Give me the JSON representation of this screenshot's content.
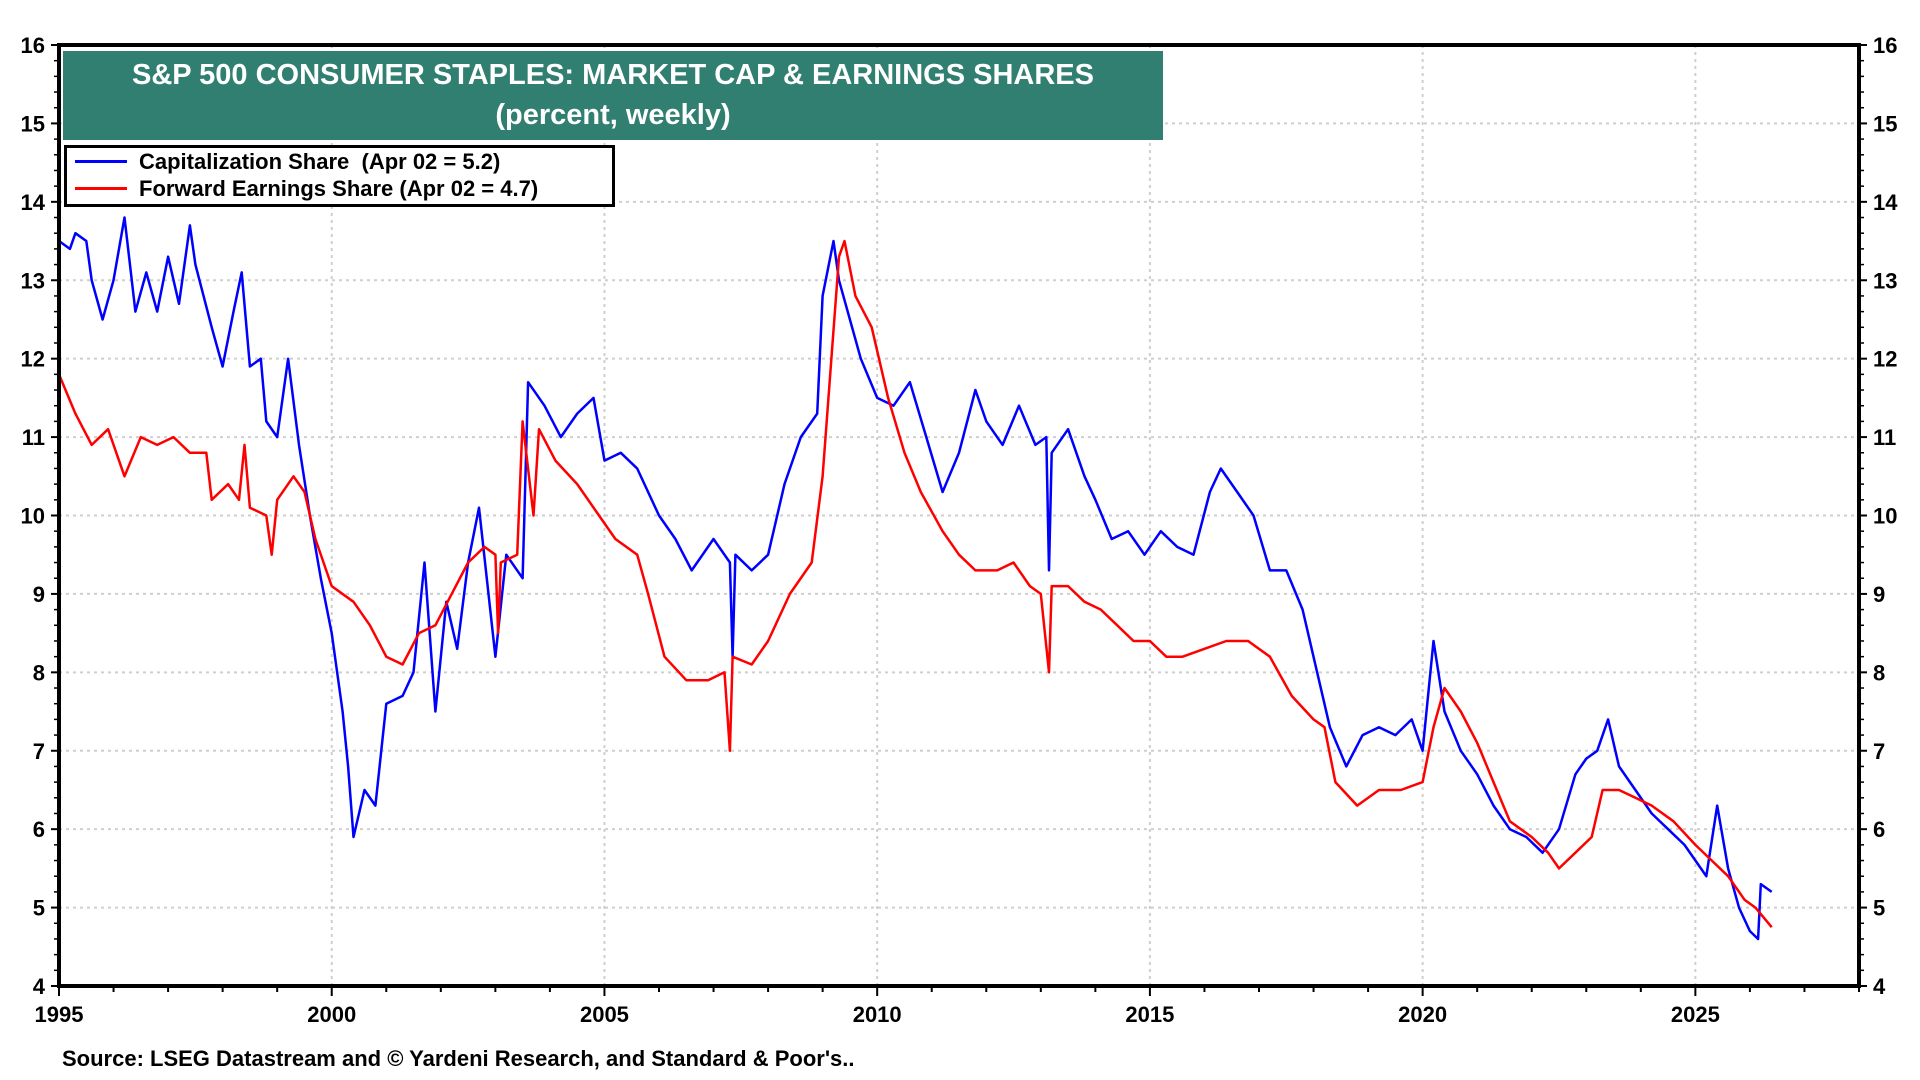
{
  "chart_data": {
    "type": "line",
    "title": "S&P 500 CONSUMER STAPLES: MARKET CAP & EARNINGS SHARES",
    "subtitle": "(percent, weekly)",
    "xlim": [
      1995,
      2028
    ],
    "ylim": [
      4,
      16
    ],
    "x_ticks": [
      "1995",
      "2000",
      "2005",
      "2010",
      "2015",
      "2020",
      "2025"
    ],
    "y_ticks": [
      "4",
      "5",
      "6",
      "7",
      "8",
      "9",
      "10",
      "11",
      "12",
      "13",
      "14",
      "15",
      "16"
    ],
    "grid": true,
    "legend_placement": "top-left",
    "series": [
      {
        "name": "Capitalization Share  (Apr 02 = 5.2)",
        "color": "#0000ff",
        "points": [
          [
            1995.0,
            13.5
          ],
          [
            1995.2,
            13.4
          ],
          [
            1995.3,
            13.6
          ],
          [
            1995.5,
            13.5
          ],
          [
            1995.6,
            13.0
          ],
          [
            1995.8,
            12.5
          ],
          [
            1996.0,
            13.0
          ],
          [
            1996.2,
            13.8
          ],
          [
            1996.4,
            12.6
          ],
          [
            1996.6,
            13.1
          ],
          [
            1996.8,
            12.6
          ],
          [
            1997.0,
            13.3
          ],
          [
            1997.2,
            12.7
          ],
          [
            1997.4,
            13.7
          ],
          [
            1997.5,
            13.2
          ],
          [
            1997.8,
            12.4
          ],
          [
            1998.0,
            11.9
          ],
          [
            1998.2,
            12.6
          ],
          [
            1998.35,
            13.1
          ],
          [
            1998.5,
            11.9
          ],
          [
            1998.7,
            12.0
          ],
          [
            1998.8,
            11.2
          ],
          [
            1999.0,
            11.0
          ],
          [
            1999.2,
            12.0
          ],
          [
            1999.4,
            10.9
          ],
          [
            1999.6,
            10.0
          ],
          [
            1999.8,
            9.2
          ],
          [
            2000.0,
            8.5
          ],
          [
            2000.2,
            7.5
          ],
          [
            2000.3,
            6.8
          ],
          [
            2000.4,
            5.9
          ],
          [
            2000.6,
            6.5
          ],
          [
            2000.8,
            6.3
          ],
          [
            2001.0,
            7.6
          ],
          [
            2001.3,
            7.7
          ],
          [
            2001.5,
            8.0
          ],
          [
            2001.7,
            9.4
          ],
          [
            2001.9,
            7.5
          ],
          [
            2002.1,
            8.9
          ],
          [
            2002.3,
            8.3
          ],
          [
            2002.5,
            9.4
          ],
          [
            2002.7,
            10.1
          ],
          [
            2003.0,
            8.2
          ],
          [
            2003.2,
            9.5
          ],
          [
            2003.5,
            9.2
          ],
          [
            2003.6,
            11.7
          ],
          [
            2003.9,
            11.4
          ],
          [
            2004.2,
            11.0
          ],
          [
            2004.5,
            11.3
          ],
          [
            2004.8,
            11.5
          ],
          [
            2005.0,
            10.7
          ],
          [
            2005.3,
            10.8
          ],
          [
            2005.6,
            10.6
          ],
          [
            2006.0,
            10.0
          ],
          [
            2006.3,
            9.7
          ],
          [
            2006.6,
            9.3
          ],
          [
            2007.0,
            9.7
          ],
          [
            2007.3,
            9.4
          ],
          [
            2007.35,
            8.2
          ],
          [
            2007.4,
            9.5
          ],
          [
            2007.7,
            9.3
          ],
          [
            2008.0,
            9.5
          ],
          [
            2008.3,
            10.4
          ],
          [
            2008.6,
            11.0
          ],
          [
            2008.9,
            11.3
          ],
          [
            2009.0,
            12.8
          ],
          [
            2009.2,
            13.5
          ],
          [
            2009.3,
            13.0
          ],
          [
            2009.5,
            12.5
          ],
          [
            2009.7,
            12.0
          ],
          [
            2010.0,
            11.5
          ],
          [
            2010.3,
            11.4
          ],
          [
            2010.6,
            11.7
          ],
          [
            2010.9,
            11.0
          ],
          [
            2011.2,
            10.3
          ],
          [
            2011.5,
            10.8
          ],
          [
            2011.8,
            11.6
          ],
          [
            2012.0,
            11.2
          ],
          [
            2012.3,
            10.9
          ],
          [
            2012.6,
            11.4
          ],
          [
            2012.9,
            10.9
          ],
          [
            2013.1,
            11.0
          ],
          [
            2013.15,
            9.3
          ],
          [
            2013.2,
            10.8
          ],
          [
            2013.5,
            11.1
          ],
          [
            2013.8,
            10.5
          ],
          [
            2014.0,
            10.2
          ],
          [
            2014.3,
            9.7
          ],
          [
            2014.6,
            9.8
          ],
          [
            2014.9,
            9.5
          ],
          [
            2015.2,
            9.8
          ],
          [
            2015.5,
            9.6
          ],
          [
            2015.8,
            9.5
          ],
          [
            2016.1,
            10.3
          ],
          [
            2016.3,
            10.6
          ],
          [
            2016.6,
            10.3
          ],
          [
            2016.9,
            10.0
          ],
          [
            2017.2,
            9.3
          ],
          [
            2017.5,
            9.3
          ],
          [
            2017.8,
            8.8
          ],
          [
            2018.0,
            8.2
          ],
          [
            2018.3,
            7.3
          ],
          [
            2018.6,
            6.8
          ],
          [
            2018.9,
            7.2
          ],
          [
            2019.2,
            7.3
          ],
          [
            2019.5,
            7.2
          ],
          [
            2019.8,
            7.4
          ],
          [
            2020.0,
            7.0
          ],
          [
            2020.2,
            8.4
          ],
          [
            2020.4,
            7.5
          ],
          [
            2020.7,
            7.0
          ],
          [
            2021.0,
            6.7
          ],
          [
            2021.3,
            6.3
          ],
          [
            2021.6,
            6.0
          ],
          [
            2021.9,
            5.9
          ],
          [
            2022.2,
            5.7
          ],
          [
            2022.5,
            6.0
          ],
          [
            2022.8,
            6.7
          ],
          [
            2023.0,
            6.9
          ],
          [
            2023.2,
            7.0
          ],
          [
            2023.4,
            7.4
          ],
          [
            2023.6,
            6.8
          ],
          [
            2023.9,
            6.5
          ],
          [
            2024.2,
            6.2
          ],
          [
            2024.5,
            6.0
          ],
          [
            2024.8,
            5.8
          ],
          [
            2025.0,
            5.6
          ],
          [
            2025.2,
            5.4
          ],
          [
            2025.4,
            6.3
          ],
          [
            2025.6,
            5.5
          ],
          [
            2025.8,
            5.0
          ],
          [
            2026.0,
            4.7
          ],
          [
            2026.15,
            4.6
          ],
          [
            2026.2,
            5.3
          ],
          [
            2026.4,
            5.2
          ]
        ]
      },
      {
        "name": "Forward Earnings Share (Apr 02 = 4.7)",
        "color": "#ff0000",
        "points": [
          [
            1995.0,
            11.8
          ],
          [
            1995.3,
            11.3
          ],
          [
            1995.6,
            10.9
          ],
          [
            1995.9,
            11.1
          ],
          [
            1996.2,
            10.5
          ],
          [
            1996.5,
            11.0
          ],
          [
            1996.8,
            10.9
          ],
          [
            1997.1,
            11.0
          ],
          [
            1997.4,
            10.8
          ],
          [
            1997.7,
            10.8
          ],
          [
            1997.8,
            10.2
          ],
          [
            1998.1,
            10.4
          ],
          [
            1998.3,
            10.2
          ],
          [
            1998.4,
            10.9
          ],
          [
            1998.5,
            10.1
          ],
          [
            1998.8,
            10.0
          ],
          [
            1998.9,
            9.5
          ],
          [
            1999.0,
            10.2
          ],
          [
            1999.3,
            10.5
          ],
          [
            1999.5,
            10.3
          ],
          [
            1999.7,
            9.7
          ],
          [
            2000.0,
            9.1
          ],
          [
            2000.4,
            8.9
          ],
          [
            2000.7,
            8.6
          ],
          [
            2001.0,
            8.2
          ],
          [
            2001.3,
            8.1
          ],
          [
            2001.6,
            8.5
          ],
          [
            2001.9,
            8.6
          ],
          [
            2002.2,
            9.0
          ],
          [
            2002.5,
            9.4
          ],
          [
            2002.8,
            9.6
          ],
          [
            2003.0,
            9.5
          ],
          [
            2003.05,
            8.5
          ],
          [
            2003.1,
            9.4
          ],
          [
            2003.4,
            9.5
          ],
          [
            2003.5,
            11.2
          ],
          [
            2003.7,
            10.0
          ],
          [
            2003.8,
            11.1
          ],
          [
            2004.1,
            10.7
          ],
          [
            2004.5,
            10.4
          ],
          [
            2004.9,
            10.0
          ],
          [
            2005.2,
            9.7
          ],
          [
            2005.6,
            9.5
          ],
          [
            2005.8,
            9.0
          ],
          [
            2006.1,
            8.2
          ],
          [
            2006.5,
            7.9
          ],
          [
            2006.9,
            7.9
          ],
          [
            2007.2,
            8.0
          ],
          [
            2007.3,
            7.0
          ],
          [
            2007.35,
            8.2
          ],
          [
            2007.7,
            8.1
          ],
          [
            2008.0,
            8.4
          ],
          [
            2008.4,
            9.0
          ],
          [
            2008.8,
            9.4
          ],
          [
            2009.0,
            10.5
          ],
          [
            2009.3,
            13.3
          ],
          [
            2009.4,
            13.5
          ],
          [
            2009.6,
            12.8
          ],
          [
            2009.9,
            12.4
          ],
          [
            2010.2,
            11.5
          ],
          [
            2010.5,
            10.8
          ],
          [
            2010.8,
            10.3
          ],
          [
            2011.2,
            9.8
          ],
          [
            2011.5,
            9.5
          ],
          [
            2011.8,
            9.3
          ],
          [
            2012.2,
            9.3
          ],
          [
            2012.5,
            9.4
          ],
          [
            2012.8,
            9.1
          ],
          [
            2013.0,
            9.0
          ],
          [
            2013.15,
            8.0
          ],
          [
            2013.2,
            9.1
          ],
          [
            2013.5,
            9.1
          ],
          [
            2013.8,
            8.9
          ],
          [
            2014.1,
            8.8
          ],
          [
            2014.4,
            8.6
          ],
          [
            2014.7,
            8.4
          ],
          [
            2015.0,
            8.4
          ],
          [
            2015.3,
            8.2
          ],
          [
            2015.6,
            8.2
          ],
          [
            2016.0,
            8.3
          ],
          [
            2016.4,
            8.4
          ],
          [
            2016.8,
            8.4
          ],
          [
            2017.2,
            8.2
          ],
          [
            2017.6,
            7.7
          ],
          [
            2018.0,
            7.4
          ],
          [
            2018.2,
            7.3
          ],
          [
            2018.4,
            6.6
          ],
          [
            2018.8,
            6.3
          ],
          [
            2019.2,
            6.5
          ],
          [
            2019.6,
            6.5
          ],
          [
            2020.0,
            6.6
          ],
          [
            2020.2,
            7.3
          ],
          [
            2020.4,
            7.8
          ],
          [
            2020.7,
            7.5
          ],
          [
            2021.0,
            7.1
          ],
          [
            2021.3,
            6.6
          ],
          [
            2021.6,
            6.1
          ],
          [
            2022.0,
            5.9
          ],
          [
            2022.3,
            5.7
          ],
          [
            2022.5,
            5.5
          ],
          [
            2022.8,
            5.7
          ],
          [
            2023.1,
            5.9
          ],
          [
            2023.3,
            6.5
          ],
          [
            2023.6,
            6.5
          ],
          [
            2023.9,
            6.4
          ],
          [
            2024.2,
            6.3
          ],
          [
            2024.6,
            6.1
          ],
          [
            2025.0,
            5.8
          ],
          [
            2025.3,
            5.6
          ],
          [
            2025.6,
            5.4
          ],
          [
            2025.9,
            5.1
          ],
          [
            2026.1,
            5.0
          ],
          [
            2026.4,
            4.75
          ]
        ]
      }
    ],
    "source": "Source: LSEG Datastream and © Yardeni Research, and Standard & Poor's.."
  }
}
